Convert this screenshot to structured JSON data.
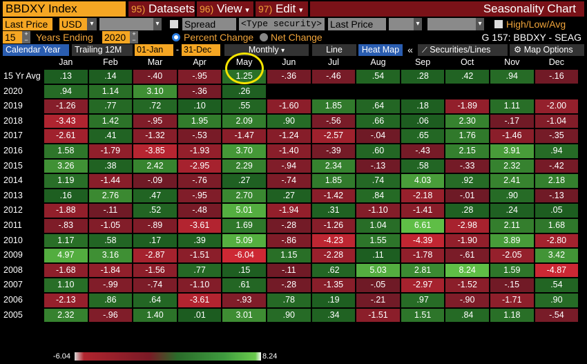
{
  "toolbar1": {
    "ticker": "BBDXY Index",
    "datasets_num": "95)",
    "datasets": "Datasets",
    "view_num": "96)",
    "view": "View",
    "edit_num": "97)",
    "edit": "Edit",
    "title": "Seasonality Chart"
  },
  "toolbar2": {
    "price_field": "Last Price",
    "currency": "USD",
    "spread_label": "Spread",
    "security_placeholder": "<Type security>",
    "price_field2": "Last Price",
    "highlowavg_label": "High/Low/Avg"
  },
  "toolbar3": {
    "years_value": "15",
    "years_label": "Years Ending",
    "end_year": "2020",
    "percent_change": "Percent Change",
    "net_change": "Net Change",
    "chart_id": "G 157: BBDXY - SEAG"
  },
  "toolbar4": {
    "calendar_year": "Calendar Year",
    "trailing": "Trailing 12M",
    "start_date": "01-Jan",
    "dash": "-",
    "end_date": "31-Dec",
    "period": "Monthly",
    "line": "Line",
    "heatmap": "Heat Map",
    "collapse": "«",
    "securities_lines": "Securities/Lines",
    "map_options": "Map Options"
  },
  "colors": {
    "amber": "#f5a623",
    "dark_red_bar": "#7a1218",
    "blue_button": "#2a5db0",
    "highlight_circle": "#f5e400"
  },
  "table": {
    "months": [
      "Jan",
      "Feb",
      "Mar",
      "Apr",
      "May",
      "Jun",
      "Jul",
      "Aug",
      "Sep",
      "Oct",
      "Nov",
      "Dec"
    ],
    "rows": [
      {
        "label": "15 Yr Avg",
        "values": [
          ".13",
          ".14",
          "-.40",
          "-.95",
          "1.25",
          "-.36",
          "-.46",
          ".54",
          ".28",
          ".42",
          ".94",
          "-.16"
        ],
        "nums": [
          0.13,
          0.14,
          -0.4,
          -0.95,
          1.25,
          -0.36,
          -0.46,
          0.54,
          0.28,
          0.42,
          0.94,
          -0.16
        ]
      },
      {
        "label": "2020",
        "values": [
          ".94",
          "1.14",
          "3.10",
          "-.36",
          ".26",
          "",
          "",
          "",
          "",
          "",
          "",
          ""
        ],
        "nums": [
          0.94,
          1.14,
          3.1,
          -0.36,
          0.26,
          null,
          null,
          null,
          null,
          null,
          null,
          null
        ]
      },
      {
        "label": "2019",
        "values": [
          "-1.26",
          ".77",
          ".72",
          ".10",
          ".55",
          "-1.60",
          "1.85",
          ".64",
          ".18",
          "-1.89",
          "1.11",
          "-2.00"
        ],
        "nums": [
          -1.26,
          0.77,
          0.72,
          0.1,
          0.55,
          -1.6,
          1.85,
          0.64,
          0.18,
          -1.89,
          1.11,
          -2.0
        ]
      },
      {
        "label": "2018",
        "values": [
          "-3.43",
          "1.42",
          "-.95",
          "1.95",
          "2.09",
          ".90",
          "-.56",
          ".66",
          ".06",
          "2.30",
          "-.17",
          "-1.04"
        ],
        "nums": [
          -3.43,
          1.42,
          -0.95,
          1.95,
          2.09,
          0.9,
          -0.56,
          0.66,
          0.06,
          2.3,
          -0.17,
          -1.04
        ]
      },
      {
        "label": "2017",
        "values": [
          "-2.61",
          ".41",
          "-1.32",
          "-.53",
          "-1.47",
          "-1.24",
          "-2.57",
          "-.04",
          ".65",
          "1.76",
          "-1.46",
          "-.35"
        ],
        "nums": [
          -2.61,
          0.41,
          -1.32,
          -0.53,
          -1.47,
          -1.24,
          -2.57,
          -0.04,
          0.65,
          1.76,
          -1.46,
          -0.35
        ]
      },
      {
        "label": "2016",
        "values": [
          "1.58",
          "-1.79",
          "-3.85",
          "-1.93",
          "3.70",
          "-1.40",
          "-.39",
          ".60",
          "-.43",
          "2.15",
          "3.91",
          ".94"
        ],
        "nums": [
          1.58,
          -1.79,
          -3.85,
          -1.93,
          3.7,
          -1.4,
          -0.39,
          0.6,
          -0.43,
          2.15,
          3.91,
          0.94
        ]
      },
      {
        "label": "2015",
        "values": [
          "3.26",
          ".38",
          "2.42",
          "-2.95",
          "2.29",
          "-.94",
          "2.34",
          "-.13",
          ".58",
          "-.33",
          "2.32",
          "-.42"
        ],
        "nums": [
          3.26,
          0.38,
          2.42,
          -2.95,
          2.29,
          -0.94,
          2.34,
          -0.13,
          0.58,
          -0.33,
          2.32,
          -0.42
        ]
      },
      {
        "label": "2014",
        "values": [
          "1.19",
          "-1.44",
          "-.09",
          "-.76",
          ".27",
          "-.74",
          "1.85",
          ".74",
          "4.03",
          ".92",
          "2.41",
          "2.18"
        ],
        "nums": [
          1.19,
          -1.44,
          -0.09,
          -0.76,
          0.27,
          -0.74,
          1.85,
          0.74,
          4.03,
          0.92,
          2.41,
          2.18
        ]
      },
      {
        "label": "2013",
        "values": [
          ".16",
          "2.76",
          ".47",
          "-.95",
          "2.70",
          ".27",
          "-1.42",
          ".84",
          "-2.18",
          "-.01",
          ".90",
          "-.13"
        ],
        "nums": [
          0.16,
          2.76,
          0.47,
          -0.95,
          2.7,
          0.27,
          -1.42,
          0.84,
          -2.18,
          -0.01,
          0.9,
          -0.13
        ]
      },
      {
        "label": "2012",
        "values": [
          "-1.88",
          "-.11",
          ".52",
          "-.48",
          "5.01",
          "-1.94",
          ".31",
          "-1.10",
          "-1.41",
          ".28",
          ".24",
          ".05"
        ],
        "nums": [
          -1.88,
          -0.11,
          0.52,
          -0.48,
          5.01,
          -1.94,
          0.31,
          -1.1,
          -1.41,
          0.28,
          0.24,
          0.05
        ]
      },
      {
        "label": "2011",
        "values": [
          "-.83",
          "-1.05",
          "-.89",
          "-3.61",
          "1.69",
          "-.28",
          "-1.26",
          "1.04",
          "6.61",
          "-2.98",
          "2.11",
          "1.68"
        ],
        "nums": [
          -0.83,
          -1.05,
          -0.89,
          -3.61,
          1.69,
          -0.28,
          -1.26,
          1.04,
          6.61,
          -2.98,
          2.11,
          1.68
        ]
      },
      {
        "label": "2010",
        "values": [
          "1.17",
          ".58",
          ".17",
          ".39",
          "5.09",
          "-.86",
          "-4.23",
          "1.55",
          "-4.39",
          "-1.90",
          "3.89",
          "-2.80"
        ],
        "nums": [
          1.17,
          0.58,
          0.17,
          0.39,
          5.09,
          -0.86,
          -4.23,
          1.55,
          -4.39,
          -1.9,
          3.89,
          -2.8
        ]
      },
      {
        "label": "2009",
        "values": [
          "4.97",
          "3.16",
          "-2.87",
          "-1.51",
          "-6.04",
          "1.15",
          "-2.28",
          ".11",
          "-1.78",
          "-.61",
          "-2.05",
          "3.42"
        ],
        "nums": [
          4.97,
          3.16,
          -2.87,
          -1.51,
          -6.04,
          1.15,
          -2.28,
          0.11,
          -1.78,
          -0.61,
          -2.05,
          3.42
        ]
      },
      {
        "label": "2008",
        "values": [
          "-1.68",
          "-1.84",
          "-1.56",
          ".77",
          ".15",
          "-.11",
          ".62",
          "5.03",
          "2.81",
          "8.24",
          "1.59",
          "-4.87"
        ],
        "nums": [
          -1.68,
          -1.84,
          -1.56,
          0.77,
          0.15,
          -0.11,
          0.62,
          5.03,
          2.81,
          8.24,
          1.59,
          -4.87
        ]
      },
      {
        "label": "2007",
        "values": [
          "1.10",
          "-.99",
          "-.74",
          "-1.10",
          ".61",
          "-.28",
          "-1.35",
          "-.05",
          "-2.97",
          "-1.52",
          "-.15",
          ".54"
        ],
        "nums": [
          1.1,
          -0.99,
          -0.74,
          -1.1,
          0.61,
          -0.28,
          -1.35,
          -0.05,
          -2.97,
          -1.52,
          -0.15,
          0.54
        ]
      },
      {
        "label": "2006",
        "values": [
          "-2.13",
          ".86",
          ".64",
          "-3.61",
          "-.93",
          ".78",
          ".19",
          "-.21",
          ".97",
          "-.90",
          "-1.71",
          ".90"
        ],
        "nums": [
          -2.13,
          0.86,
          0.64,
          -3.61,
          -0.93,
          0.78,
          0.19,
          -0.21,
          0.97,
          -0.9,
          -1.71,
          0.9
        ]
      },
      {
        "label": "2005",
        "values": [
          "2.32",
          "-.96",
          "1.40",
          ".01",
          "3.01",
          ".90",
          ".34",
          "-1.51",
          "1.51",
          ".84",
          "1.18",
          "-.54"
        ],
        "nums": [
          2.32,
          -0.96,
          1.4,
          0.01,
          3.01,
          0.9,
          0.34,
          -1.51,
          1.51,
          0.84,
          1.18,
          -0.54
        ]
      }
    ],
    "highlighted_month": "May"
  },
  "legend": {
    "min_label": "-6.04",
    "max_label": "8.24",
    "min_value": -6.04,
    "max_value": 8.24
  }
}
